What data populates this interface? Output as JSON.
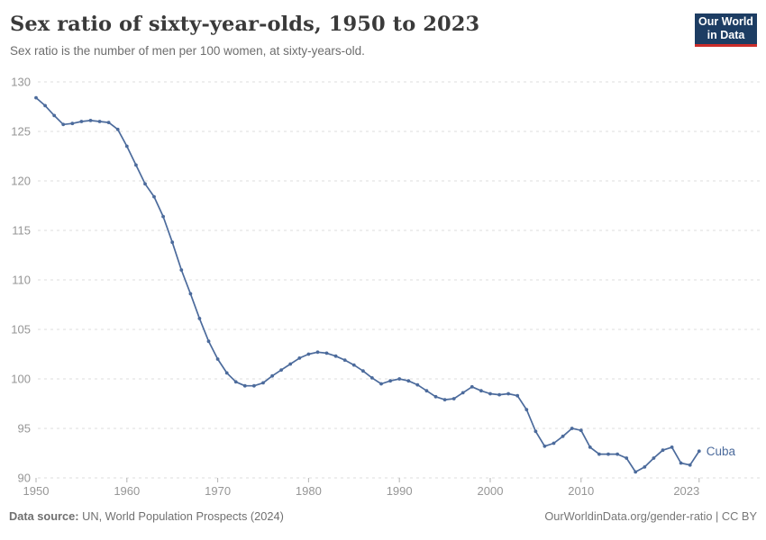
{
  "header": {
    "title": "Sex ratio of sixty-year-olds, 1950 to 2023",
    "subtitle": "Sex ratio is the number of men per 100 women, at sixty-years-old."
  },
  "logo": {
    "line1": "Our World",
    "line2": "in Data",
    "bg_color": "#1d3d63",
    "accent_color": "#cb2d2a"
  },
  "chart_data": {
    "type": "line",
    "title": "Sex ratio of sixty-year-olds, 1950 to 2023",
    "xlabel": "",
    "ylabel": "",
    "xlim": [
      1950,
      2023
    ],
    "ylim": [
      90,
      130
    ],
    "grid": true,
    "gridline_color": "#dcdcdc",
    "axis_text_color": "#969696",
    "legend": "entity label at right end of line",
    "x_ticks": [
      1950,
      1960,
      1970,
      1980,
      1990,
      2000,
      2010,
      2023
    ],
    "y_ticks": [
      90,
      95,
      100,
      105,
      110,
      115,
      120,
      125,
      130
    ],
    "series": [
      {
        "name": "Cuba",
        "color": "#4C6B9C",
        "x": [
          1950,
          1951,
          1952,
          1953,
          1954,
          1955,
          1956,
          1957,
          1958,
          1959,
          1960,
          1961,
          1962,
          1963,
          1964,
          1965,
          1966,
          1967,
          1968,
          1969,
          1970,
          1971,
          1972,
          1973,
          1974,
          1975,
          1976,
          1977,
          1978,
          1979,
          1980,
          1981,
          1982,
          1983,
          1984,
          1985,
          1986,
          1987,
          1988,
          1989,
          1990,
          1991,
          1992,
          1993,
          1994,
          1995,
          1996,
          1997,
          1998,
          1999,
          2000,
          2001,
          2002,
          2003,
          2004,
          2005,
          2006,
          2007,
          2008,
          2009,
          2010,
          2011,
          2012,
          2013,
          2014,
          2015,
          2016,
          2017,
          2018,
          2019,
          2020,
          2021,
          2022,
          2023
        ],
        "values": [
          128.4,
          127.6,
          126.6,
          125.7,
          125.8,
          126.0,
          126.1,
          126.0,
          125.9,
          125.2,
          123.5,
          121.6,
          119.7,
          118.4,
          116.4,
          113.8,
          111.0,
          108.6,
          106.1,
          103.8,
          102.0,
          100.6,
          99.7,
          99.3,
          99.3,
          99.6,
          100.3,
          100.9,
          101.5,
          102.1,
          102.5,
          102.7,
          102.6,
          102.3,
          101.9,
          101.4,
          100.8,
          100.1,
          99.5,
          99.8,
          100.0,
          99.8,
          99.4,
          98.8,
          98.2,
          97.9,
          98.0,
          98.6,
          99.2,
          98.8,
          98.5,
          98.4,
          98.5,
          98.3,
          96.9,
          94.7,
          93.2,
          93.5,
          94.2,
          95.0,
          94.8,
          93.1,
          92.4,
          92.4,
          92.4,
          92.0,
          90.6,
          91.1,
          92.0,
          92.8,
          93.1,
          91.5,
          91.3,
          92.7
        ]
      }
    ]
  },
  "footer": {
    "source_label": "Data source:",
    "source_text": " UN, World Population Prospects (2024)",
    "link_text": "OurWorldinData.org/gender-ratio | CC BY"
  }
}
